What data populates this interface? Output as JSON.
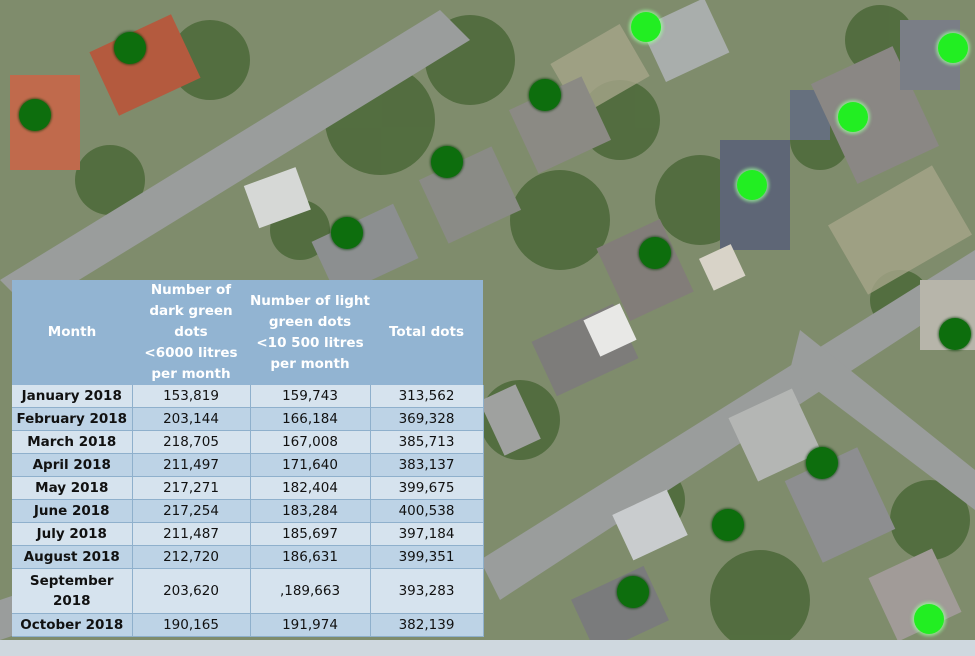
{
  "table": {
    "headers": {
      "month": "Month",
      "dark_title": "Number of dark green dots",
      "dark_sub": "<6000 litres per month",
      "light_title": "Number of light green dots",
      "light_sub": "<10 500 litres per month",
      "total": "Total dots"
    },
    "rows": [
      {
        "month": "January 2018",
        "dark": "153,819",
        "light": "159,743",
        "total": "313,562"
      },
      {
        "month": "February 2018",
        "dark": "203,144",
        "light": "166,184",
        "total": "369,328"
      },
      {
        "month": "March 2018",
        "dark": "218,705",
        "light": "167,008",
        "total": "385,713"
      },
      {
        "month": "April 2018",
        "dark": "211,497",
        "light": "171,640",
        "total": "383,137"
      },
      {
        "month": "May 2018",
        "dark": "217,271",
        "light": "182,404",
        "total": "399,675"
      },
      {
        "month": "June 2018",
        "dark": "217,254",
        "light": "183,284",
        "total": "400,538"
      },
      {
        "month": "July 2018",
        "dark": "211,487",
        "light": "185,697",
        "total": "397,184"
      },
      {
        "month": "August 2018",
        "dark": "212,720",
        "light": "186,631",
        "total": "399,351"
      },
      {
        "month": "September 2018",
        "dark": "203,620",
        "light": ",189,663",
        "total": "393,283"
      },
      {
        "month": "October 2018",
        "dark": "190,165",
        "light": "191,974",
        "total": "382,139"
      }
    ]
  },
  "legend_colors": {
    "dark_green_dot": "#0d6e0d",
    "light_green_dot": "#22ee22"
  }
}
